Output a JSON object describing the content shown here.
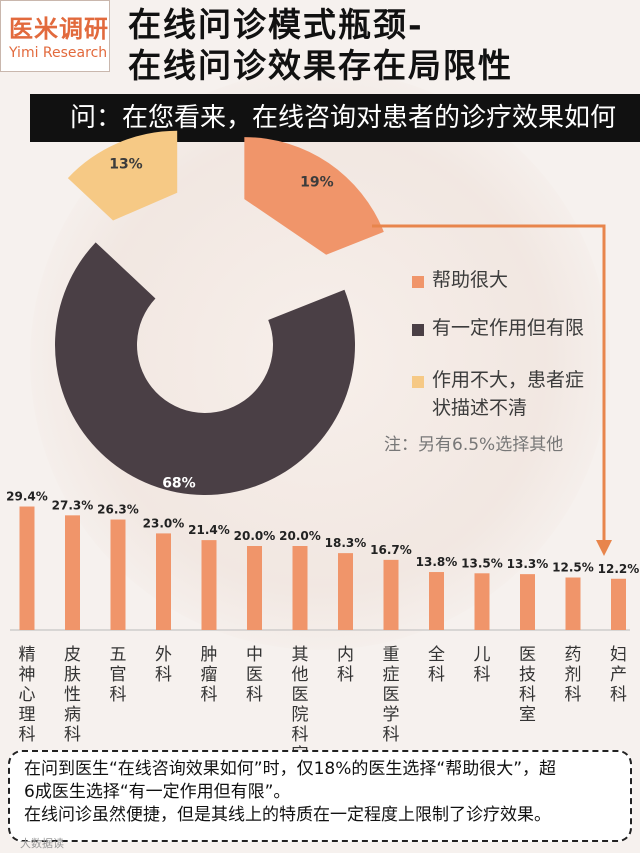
{
  "logo": {
    "cn": "医米调研",
    "en": "Yimi Research"
  },
  "title": {
    "line1": "在线问诊模式瓶颈-",
    "line2": "在线问诊效果存在局限性"
  },
  "question": "问：在您看来，在线咨询对患者的诊疗效果如何",
  "colors": {
    "orange": "#f0956a",
    "dark": "#4a3f45",
    "yellow": "#f6c985",
    "bar": "#f0956a",
    "arrow": "#e8854c"
  },
  "chart_data": [
    {
      "type": "pie",
      "variant": "donut",
      "slices": [
        {
          "label": "帮助很大",
          "value": 19,
          "display": "19%",
          "color": "#f0956a",
          "exploded": true
        },
        {
          "label": "有一定作用但有限",
          "value": 68,
          "display": "68%",
          "color": "#4a3f45",
          "exploded": false
        },
        {
          "label": "作用不大，患者症状描述不清",
          "value": 13,
          "display": "13%",
          "color": "#f6c985",
          "exploded": true
        }
      ],
      "legend": [
        "帮助很大",
        "有一定作用但有限",
        "作用不大，患者症",
        "状描述不清"
      ],
      "note": "注：另有6.5%选择其他",
      "legend_position": "right"
    },
    {
      "type": "bar",
      "categories": [
        "精神心理科",
        "皮肤性病科",
        "五官科",
        "外科",
        "肿瘤科",
        "中医科",
        "其他医院科室",
        "内科",
        "重症医学科",
        "全科",
        "儿科",
        "医技科室",
        "药剂科",
        "妇产科"
      ],
      "values": [
        29.4,
        27.3,
        26.3,
        23.0,
        21.4,
        20.0,
        20.0,
        18.3,
        16.7,
        13.8,
        13.5,
        13.3,
        12.5,
        12.2
      ],
      "labels": [
        "29.4%",
        "27.3%",
        "26.3%",
        "23.0%",
        "21.4%",
        "20.0%",
        "20.0%",
        "18.3%",
        "16.7%",
        "13.8%",
        "13.5%",
        "13.3%",
        "12.5%",
        "12.2%"
      ],
      "ylim": [
        0,
        30
      ]
    }
  ],
  "summary": {
    "line1": "在问到医生“在线咨询效果如何”时，仅18%的医生选择“帮助很大”，超",
    "line2": "6成医生选择“有一定作用但有限”。",
    "line3": "在线问诊虽然便捷，但是其线上的特质在一定程度上限制了诊疗效果。"
  },
  "watermark": "大数据读"
}
